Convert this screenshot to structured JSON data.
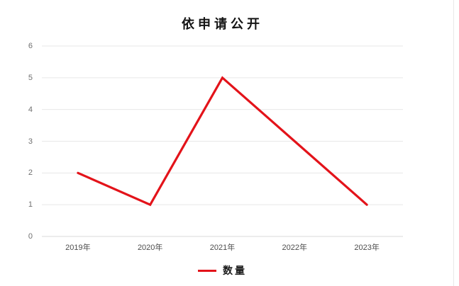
{
  "window": {
    "background": "#ffffff"
  },
  "panel": {
    "edge_color": "#e8e8e8"
  },
  "chart_data": {
    "type": "line",
    "title": "依申请公开",
    "categories": [
      "2019年",
      "2020年",
      "2021年",
      "2022年",
      "2023年"
    ],
    "series": [
      {
        "name": "数量",
        "color": "#e3131a",
        "values": [
          2,
          1,
          5,
          3,
          1
        ]
      }
    ],
    "xlabel": "",
    "ylabel": "",
    "ylim": [
      0,
      6
    ],
    "y_ticks": [
      0,
      1,
      2,
      3,
      4,
      5,
      6
    ],
    "grid": "horizontal-only",
    "legend_position": "bottom",
    "colors": {
      "grid_line": "#e7e7e7",
      "axis_line": "#d9d9d9",
      "y_tick_label": "#6f6f6f",
      "x_tick_label": "#4d4d4d",
      "title": "#141414"
    }
  }
}
